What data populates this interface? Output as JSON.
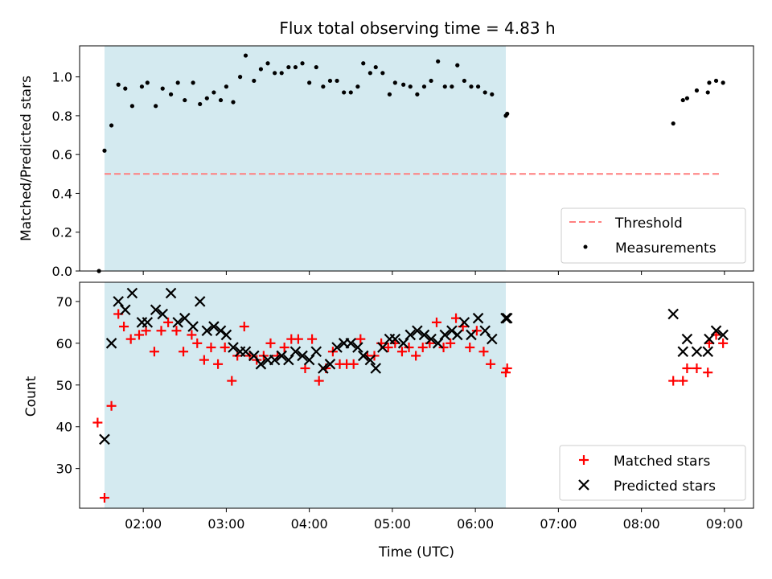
{
  "figure": {
    "title": "Flux total observing time = 4.83 h",
    "xlabel": "Time (UTC)"
  },
  "chart_data": [
    {
      "type": "scatter",
      "title": "Flux total observing time = 4.83 h",
      "xlabel": "",
      "ylabel": "Matched/Predicted stars",
      "xlim": [
        "01:14",
        "09:21"
      ],
      "ylim": [
        0,
        1.16
      ],
      "yticks": [
        0.0,
        0.2,
        0.4,
        0.6,
        0.8,
        1.0
      ],
      "xticks": [
        "02:00",
        "03:00",
        "04:00",
        "05:00",
        "06:00",
        "07:00",
        "08:00",
        "09:00"
      ],
      "shaded_region": {
        "x": [
          "01:32",
          "06:22"
        ],
        "color": "#d4eaf0"
      },
      "threshold": {
        "name": "Threshold",
        "y": 0.5,
        "x": [
          "01:32",
          "08:56"
        ],
        "color": "#ff7f7f",
        "style": "dashed"
      },
      "legend": {
        "position": "lower-right",
        "entries": [
          "Threshold",
          "Measurements"
        ]
      },
      "series": [
        {
          "name": "Measurements",
          "marker": "dot",
          "color": "#000000",
          "points": [
            [
              "01:28",
              0.0
            ],
            [
              "01:32",
              0.62
            ],
            [
              "01:37",
              0.75
            ],
            [
              "01:42",
              0.96
            ],
            [
              "01:47",
              0.94
            ],
            [
              "01:52",
              0.85
            ],
            [
              "01:59",
              0.95
            ],
            [
              "02:03",
              0.97
            ],
            [
              "02:09",
              0.85
            ],
            [
              "02:14",
              0.94
            ],
            [
              "02:20",
              0.91
            ],
            [
              "02:25",
              0.97
            ],
            [
              "02:30",
              0.88
            ],
            [
              "02:36",
              0.97
            ],
            [
              "02:41",
              0.86
            ],
            [
              "02:46",
              0.89
            ],
            [
              "02:51",
              0.92
            ],
            [
              "02:56",
              0.88
            ],
            [
              "03:00",
              0.95
            ],
            [
              "03:05",
              0.87
            ],
            [
              "03:10",
              1.0
            ],
            [
              "03:14",
              1.11
            ],
            [
              "03:20",
              0.98
            ],
            [
              "03:25",
              1.04
            ],
            [
              "03:30",
              1.07
            ],
            [
              "03:35",
              1.02
            ],
            [
              "03:40",
              1.02
            ],
            [
              "03:45",
              1.05
            ],
            [
              "03:50",
              1.05
            ],
            [
              "03:55",
              1.07
            ],
            [
              "04:00",
              0.97
            ],
            [
              "04:05",
              1.05
            ],
            [
              "04:10",
              0.95
            ],
            [
              "04:15",
              0.98
            ],
            [
              "04:20",
              0.98
            ],
            [
              "04:25",
              0.92
            ],
            [
              "04:30",
              0.92
            ],
            [
              "04:35",
              0.95
            ],
            [
              "04:39",
              1.07
            ],
            [
              "04:44",
              1.02
            ],
            [
              "04:48",
              1.05
            ],
            [
              "04:53",
              1.02
            ],
            [
              "04:58",
              0.91
            ],
            [
              "05:02",
              0.97
            ],
            [
              "05:08",
              0.96
            ],
            [
              "05:13",
              0.95
            ],
            [
              "05:18",
              0.91
            ],
            [
              "05:23",
              0.95
            ],
            [
              "05:28",
              0.98
            ],
            [
              "05:33",
              1.08
            ],
            [
              "05:38",
              0.95
            ],
            [
              "05:43",
              0.95
            ],
            [
              "05:47",
              1.06
            ],
            [
              "05:52",
              0.98
            ],
            [
              "05:57",
              0.95
            ],
            [
              "06:02",
              0.95
            ],
            [
              "06:07",
              0.92
            ],
            [
              "06:12",
              0.91
            ],
            [
              "06:22",
              0.8
            ],
            [
              "06:23",
              0.81
            ],
            [
              "08:23",
              0.76
            ],
            [
              "08:30",
              0.88
            ],
            [
              "08:33",
              0.89
            ],
            [
              "08:40",
              0.93
            ],
            [
              "08:48",
              0.92
            ],
            [
              "08:49",
              0.97
            ],
            [
              "08:54",
              0.98
            ],
            [
              "08:59",
              0.97
            ]
          ]
        }
      ]
    },
    {
      "type": "scatter",
      "title": "",
      "xlabel": "Time (UTC)",
      "ylabel": "Count",
      "xlim": [
        "01:14",
        "09:21"
      ],
      "ylim": [
        20.5,
        74.6
      ],
      "yticks": [
        30,
        40,
        50,
        60,
        70
      ],
      "xticks": [
        "02:00",
        "03:00",
        "04:00",
        "05:00",
        "06:00",
        "07:00",
        "08:00",
        "09:00"
      ],
      "shaded_region": {
        "x": [
          "01:32",
          "06:22"
        ],
        "color": "#d4eaf0"
      },
      "legend": {
        "position": "lower-right",
        "entries": [
          "Matched stars",
          "Predicted stars"
        ]
      },
      "series": [
        {
          "name": "Matched stars",
          "marker": "plus",
          "color": "#ff0000",
          "points": [
            [
              "01:27",
              41
            ],
            [
              "01:32",
              23
            ],
            [
              "01:37",
              45
            ],
            [
              "01:42",
              67
            ],
            [
              "01:46",
              64
            ],
            [
              "01:51",
              61
            ],
            [
              "01:57",
              62
            ],
            [
              "02:02",
              63
            ],
            [
              "02:08",
              58
            ],
            [
              "02:13",
              63
            ],
            [
              "02:18",
              65
            ],
            [
              "02:24",
              63
            ],
            [
              "02:29",
              58
            ],
            [
              "02:35",
              62
            ],
            [
              "02:39",
              60
            ],
            [
              "02:44",
              56
            ],
            [
              "02:49",
              59
            ],
            [
              "02:54",
              55
            ],
            [
              "02:59",
              59
            ],
            [
              "03:04",
              51
            ],
            [
              "03:08",
              57
            ],
            [
              "03:13",
              64
            ],
            [
              "03:17",
              57
            ],
            [
              "03:22",
              56
            ],
            [
              "03:27",
              57
            ],
            [
              "03:32",
              60
            ],
            [
              "03:37",
              57
            ],
            [
              "03:42",
              59
            ],
            [
              "03:47",
              61
            ],
            [
              "03:52",
              61
            ],
            [
              "03:57",
              54
            ],
            [
              "04:02",
              61
            ],
            [
              "04:07",
              51
            ],
            [
              "04:12",
              54
            ],
            [
              "04:17",
              58
            ],
            [
              "04:22",
              55
            ],
            [
              "04:27",
              55
            ],
            [
              "04:32",
              55
            ],
            [
              "04:37",
              61
            ],
            [
              "04:42",
              57
            ],
            [
              "04:47",
              57
            ],
            [
              "04:52",
              60
            ],
            [
              "04:57",
              59
            ],
            [
              "05:02",
              60
            ],
            [
              "05:07",
              58
            ],
            [
              "05:12",
              59
            ],
            [
              "05:17",
              57
            ],
            [
              "05:22",
              59
            ],
            [
              "05:27",
              60
            ],
            [
              "05:32",
              65
            ],
            [
              "05:37",
              59
            ],
            [
              "05:42",
              60
            ],
            [
              "05:46",
              66
            ],
            [
              "05:51",
              64
            ],
            [
              "05:56",
              59
            ],
            [
              "06:01",
              63
            ],
            [
              "06:06",
              58
            ],
            [
              "06:11",
              55
            ],
            [
              "06:22",
              53
            ],
            [
              "06:23",
              54
            ],
            [
              "08:23",
              51
            ],
            [
              "08:30",
              51
            ],
            [
              "08:33",
              54
            ],
            [
              "08:40",
              54
            ],
            [
              "08:48",
              53
            ],
            [
              "08:49",
              60
            ],
            [
              "08:54",
              62
            ],
            [
              "08:59",
              60
            ]
          ]
        },
        {
          "name": "Predicted stars",
          "marker": "x",
          "color": "#000000",
          "points": [
            [
              "01:32",
              37
            ],
            [
              "01:37",
              60
            ],
            [
              "01:42",
              70
            ],
            [
              "01:47",
              68
            ],
            [
              "01:52",
              72
            ],
            [
              "01:59",
              65
            ],
            [
              "02:03",
              65
            ],
            [
              "02:09",
              68
            ],
            [
              "02:14",
              67
            ],
            [
              "02:20",
              72
            ],
            [
              "02:25",
              65
            ],
            [
              "02:30",
              66
            ],
            [
              "02:36",
              64
            ],
            [
              "02:41",
              70
            ],
            [
              "02:46",
              63
            ],
            [
              "02:51",
              64
            ],
            [
              "02:56",
              63
            ],
            [
              "03:00",
              62
            ],
            [
              "03:05",
              59
            ],
            [
              "03:10",
              58
            ],
            [
              "03:14",
              58
            ],
            [
              "03:20",
              57
            ],
            [
              "03:25",
              55
            ],
            [
              "03:30",
              56
            ],
            [
              "03:35",
              56
            ],
            [
              "03:40",
              57
            ],
            [
              "03:45",
              56
            ],
            [
              "03:50",
              58
            ],
            [
              "03:55",
              57
            ],
            [
              "04:00",
              56
            ],
            [
              "04:05",
              58
            ],
            [
              "04:10",
              54
            ],
            [
              "04:15",
              55
            ],
            [
              "04:20",
              59
            ],
            [
              "04:25",
              60
            ],
            [
              "04:30",
              60
            ],
            [
              "04:35",
              59
            ],
            [
              "04:39",
              57
            ],
            [
              "04:44",
              56
            ],
            [
              "04:48",
              54
            ],
            [
              "04:53",
              59
            ],
            [
              "04:58",
              61
            ],
            [
              "05:02",
              61
            ],
            [
              "05:08",
              60
            ],
            [
              "05:13",
              62
            ],
            [
              "05:18",
              63
            ],
            [
              "05:23",
              62
            ],
            [
              "05:28",
              61
            ],
            [
              "05:33",
              60
            ],
            [
              "05:38",
              62
            ],
            [
              "05:43",
              63
            ],
            [
              "05:47",
              62
            ],
            [
              "05:52",
              65
            ],
            [
              "05:57",
              62
            ],
            [
              "06:02",
              66
            ],
            [
              "06:07",
              63
            ],
            [
              "06:12",
              61
            ],
            [
              "06:22",
              66
            ],
            [
              "06:23",
              66
            ],
            [
              "08:23",
              67
            ],
            [
              "08:30",
              58
            ],
            [
              "08:33",
              61
            ],
            [
              "08:40",
              58
            ],
            [
              "08:48",
              58
            ],
            [
              "08:49",
              61
            ],
            [
              "08:54",
              63
            ],
            [
              "08:59",
              62
            ]
          ]
        }
      ]
    }
  ]
}
